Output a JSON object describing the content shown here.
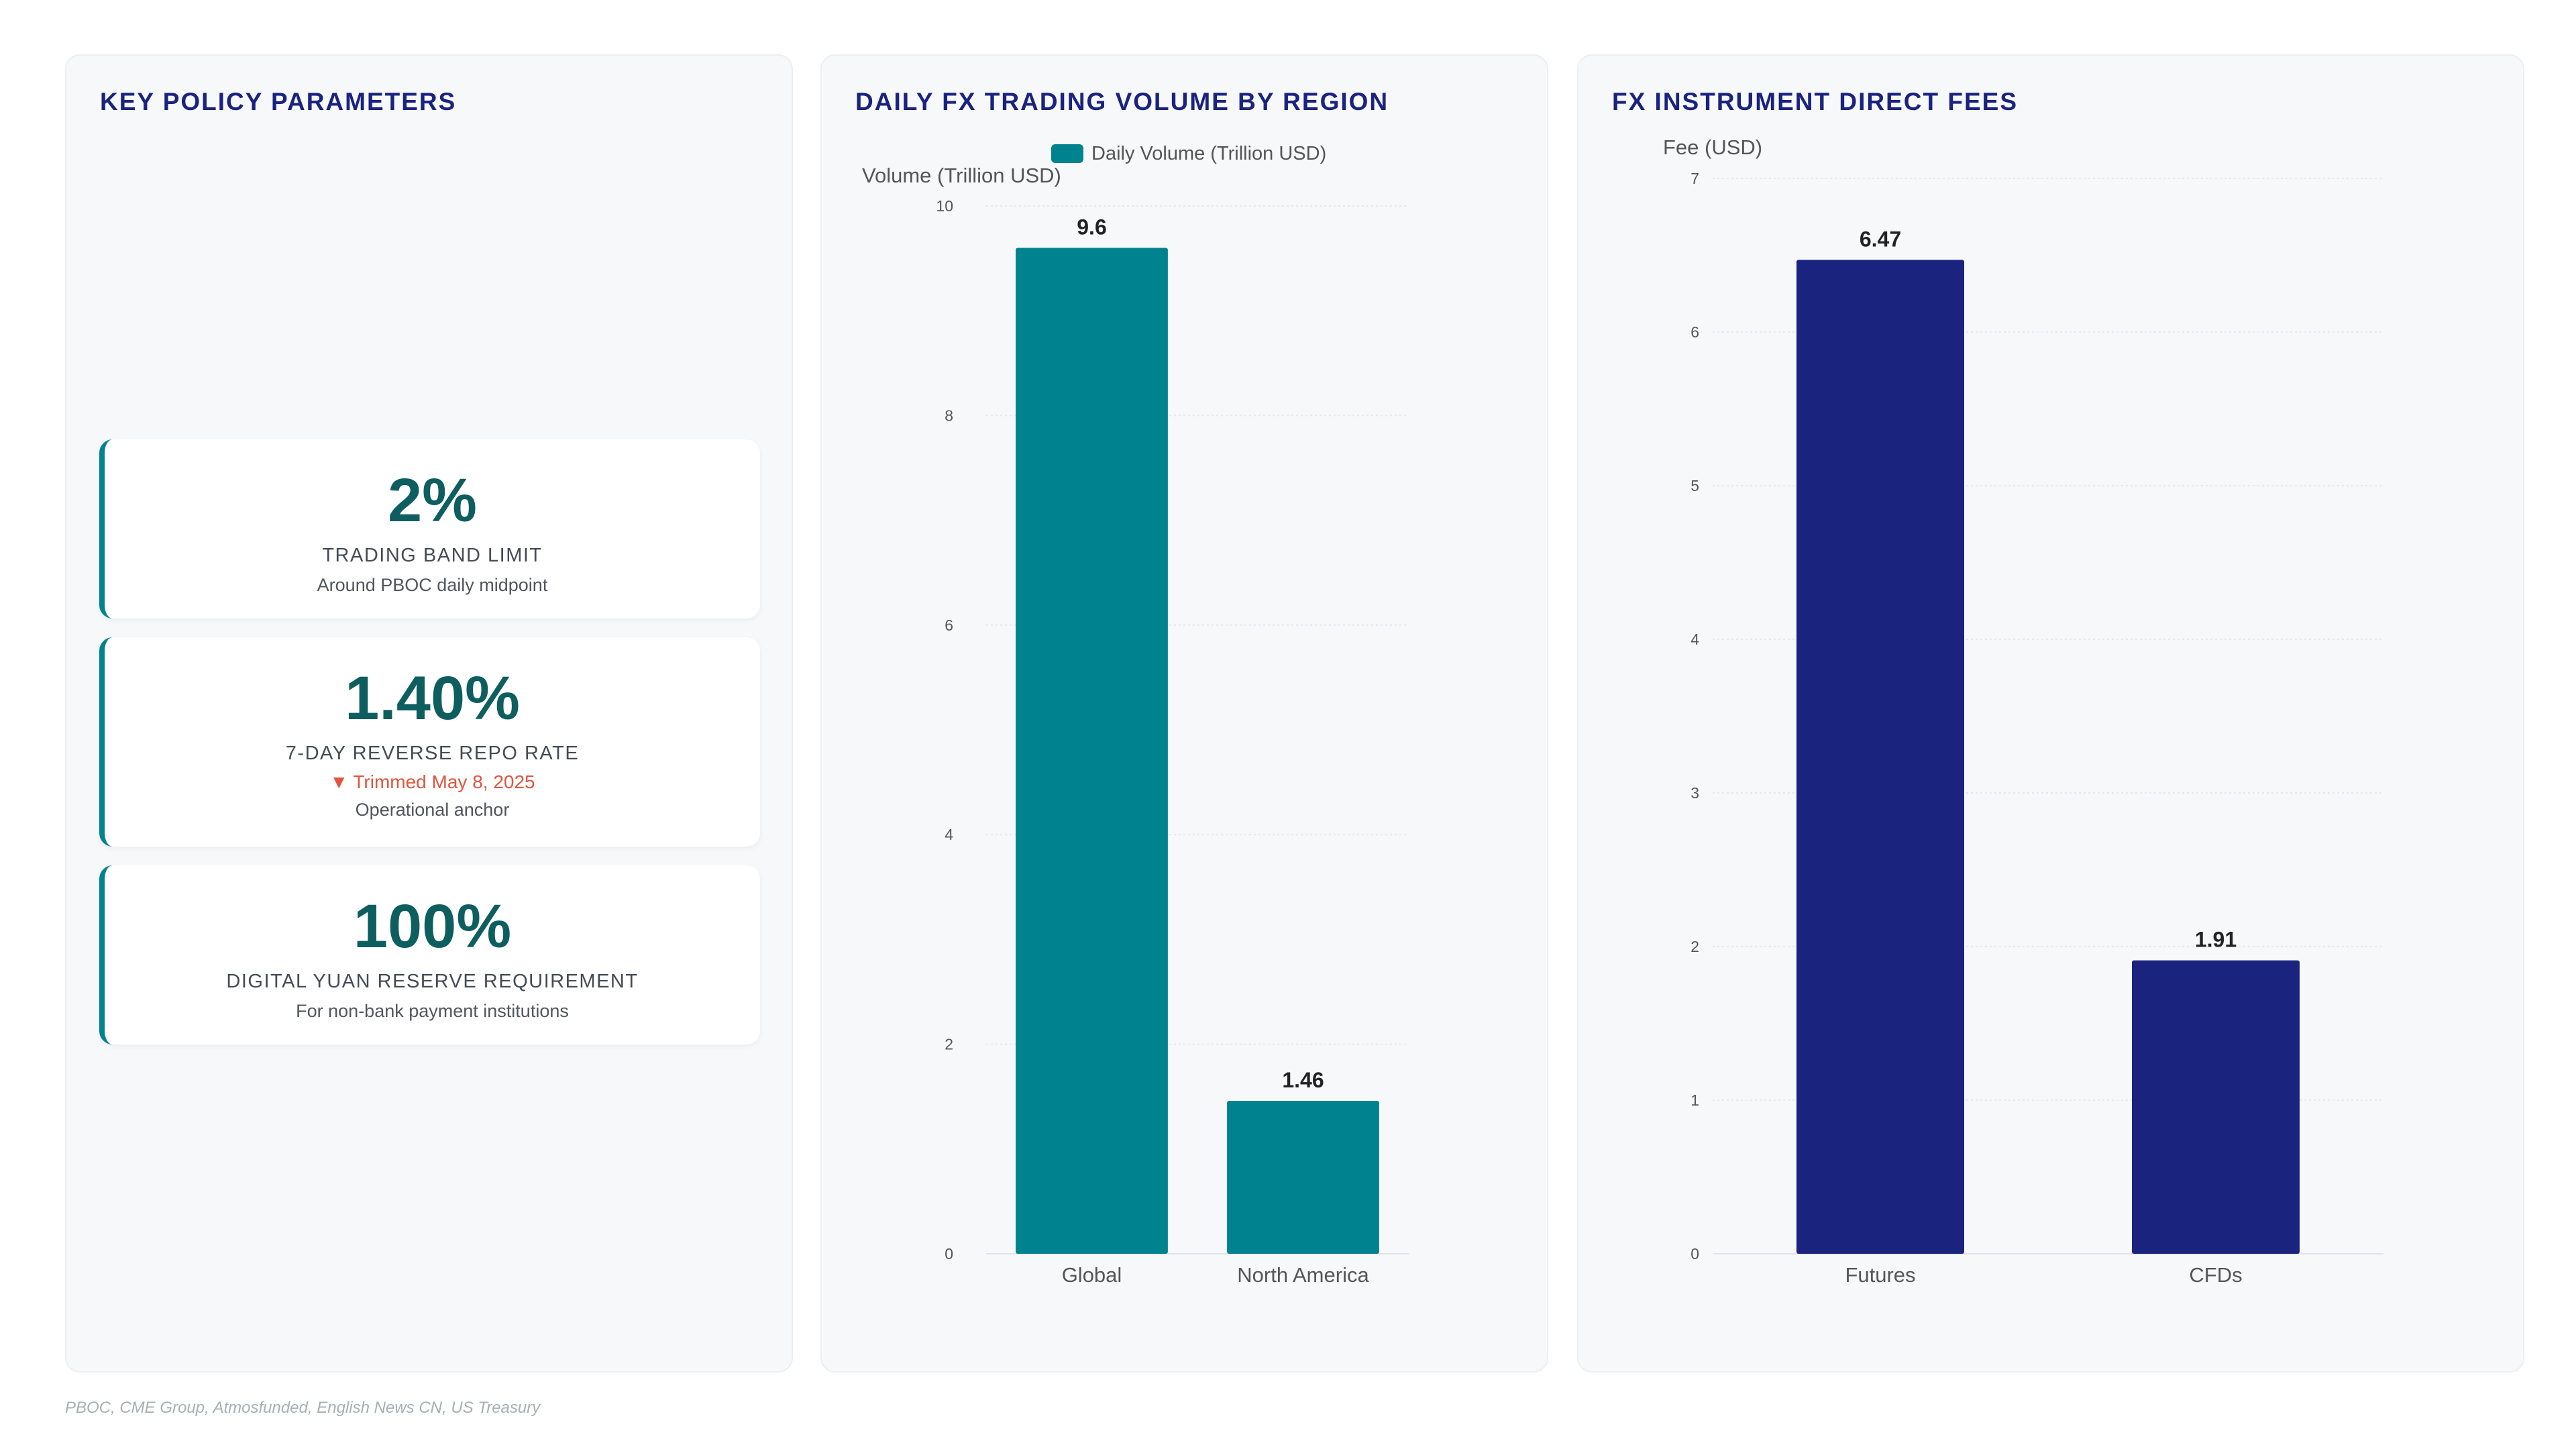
{
  "kpi_panel": {
    "title": "KEY POLICY PARAMETERS",
    "cards": [
      {
        "value": "2%",
        "label": "TRADING BAND LIMIT",
        "note": "Around PBOC daily midpoint"
      },
      {
        "value": "1.40%",
        "label": "7-DAY REVERSE REPO RATE",
        "change": "▼ Trimmed May 8, 2025",
        "note": "Operational anchor"
      },
      {
        "value": "100%",
        "label": "DIGITAL YUAN RESERVE REQUIREMENT",
        "note": "For non-bank payment institutions"
      }
    ]
  },
  "chart_data": [
    {
      "type": "bar",
      "title": "DAILY FX TRADING VOLUME BY REGION",
      "categories": [
        "Global",
        "North America"
      ],
      "series": [
        {
          "name": "Daily Volume (Trillion USD)",
          "values": [
            9.6,
            1.46
          ]
        }
      ],
      "ylabel": "Volume (Trillion USD)",
      "xlabel": "",
      "ylim": [
        0,
        10
      ],
      "yticks": [
        0,
        2,
        4,
        6,
        8,
        10
      ],
      "grid": true,
      "legend": "top-center",
      "data_labels": [
        "9.6",
        "1.46"
      ],
      "color": "#00838f"
    },
    {
      "type": "bar",
      "title": "FX INSTRUMENT DIRECT FEES",
      "categories": [
        "Futures",
        "CFDs"
      ],
      "series": [
        {
          "values": [
            6.47,
            1.91
          ]
        }
      ],
      "ylabel": "Fee (USD)",
      "xlabel": "",
      "ylim": [
        0,
        7
      ],
      "yticks": [
        0,
        1,
        2,
        3,
        4,
        5,
        6,
        7
      ],
      "grid": true,
      "legend": "none",
      "data_labels": [
        "6.47",
        "1.91"
      ],
      "color": "#1a237e"
    }
  ],
  "source": "PBOC, CME Group, Atmosfunded, English News CN, US Treasury"
}
